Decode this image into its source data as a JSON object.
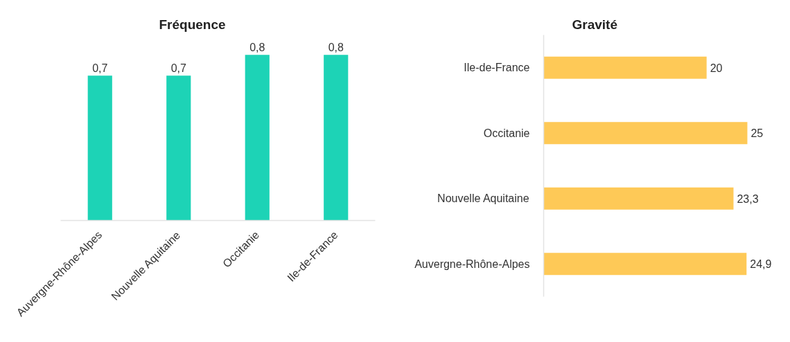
{
  "chart_data": [
    {
      "type": "bar",
      "title": "Fréquence",
      "categories": [
        "Auvergne-Rhône-Alpes",
        "Nouvelle Aquitaine",
        "Occitanie",
        "Ile-de-France"
      ],
      "values": [
        0.7,
        0.7,
        0.8,
        0.8
      ],
      "value_labels": [
        "0,7",
        "0,7",
        "0,8",
        "0,8"
      ],
      "color": "#1dd3b6",
      "tick_labels": "x"
    },
    {
      "type": "bar",
      "orientation": "horizontal",
      "title": "Gravité",
      "categories": [
        "Ile-de-France",
        "Occitanie",
        "Nouvelle Aquitaine",
        "Auvergne-Rhône-Alpes"
      ],
      "values": [
        20,
        25,
        23.3,
        24.9
      ],
      "value_labels": [
        "20",
        "25",
        "23,3",
        "24,9"
      ],
      "color": "#fec957",
      "tick_labels": "y"
    }
  ]
}
